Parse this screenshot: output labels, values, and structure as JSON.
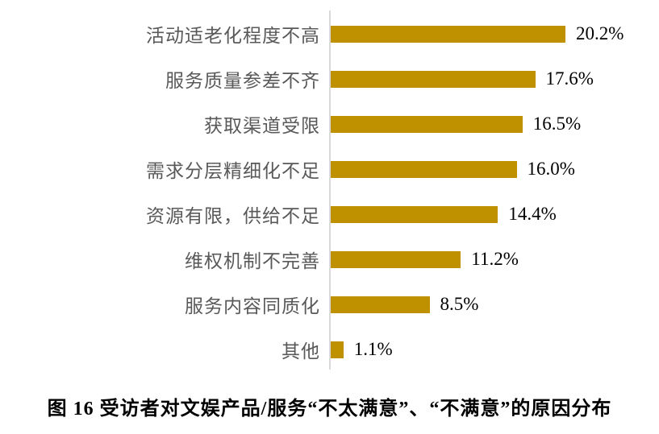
{
  "chart_data": {
    "type": "bar",
    "orientation": "horizontal",
    "title": "图 16 受访者对文娱产品/服务“不太满意”、“不满意”的原因分布",
    "categories": [
      "活动适老化程度不高",
      "服务质量参差不齐",
      "获取渠道受限",
      "需求分层精细化不足",
      "资源有限，供给不足",
      "维权机制不完善",
      "服务内容同质化",
      "其他"
    ],
    "values": [
      20.2,
      17.6,
      16.5,
      16.0,
      14.4,
      11.2,
      8.5,
      1.1
    ],
    "value_labels": [
      "20.2%",
      "17.6%",
      "16.5%",
      "16.0%",
      "14.4%",
      "11.2%",
      "8.5%",
      "1.1%"
    ],
    "xlabel": "",
    "ylabel": "",
    "xlim": [
      0,
      22
    ],
    "grid": false,
    "legend": "none",
    "bar_color": "#bf9000",
    "axis_line_color": "#d9d9d9",
    "category_label_color": "#595959",
    "value_label_color": "#000000"
  },
  "caption": "图 16 受访者对文娱产品/服务“不太满意”、“不满意”的原因分布"
}
